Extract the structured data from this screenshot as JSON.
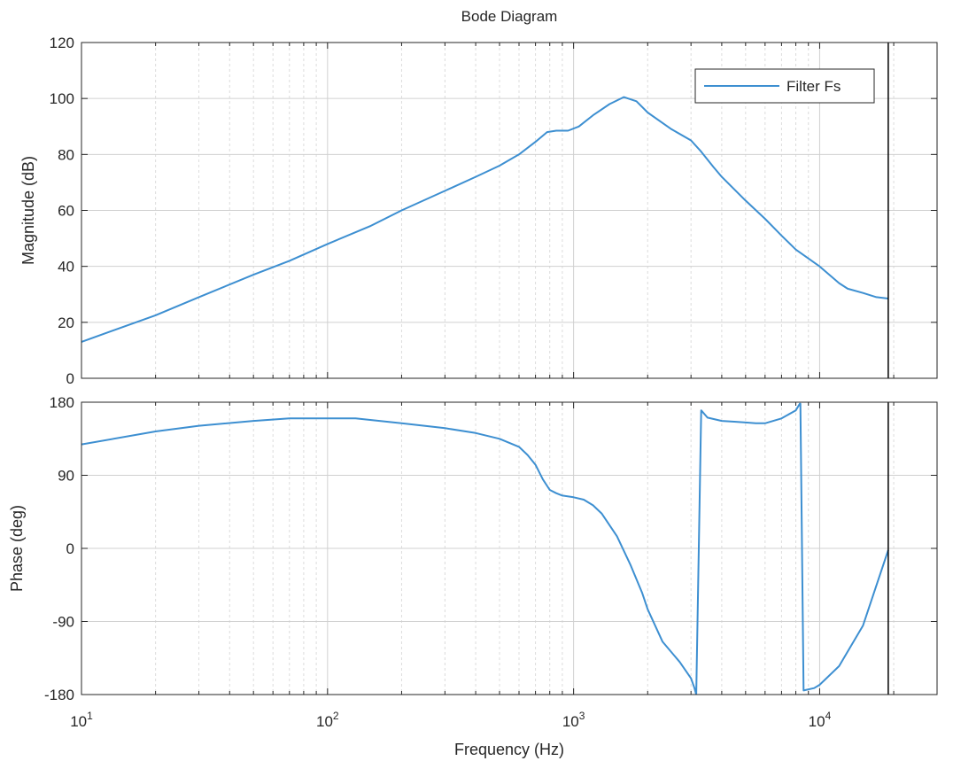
{
  "chart_data": {
    "type": "line",
    "title": "Bode Diagram",
    "xlabel": "Frequency (Hz)",
    "xscale": "log",
    "xlim": [
      10,
      30000
    ],
    "x_ticks": [
      {
        "base": "10",
        "exp": "1"
      },
      {
        "base": "10",
        "exp": "2"
      },
      {
        "base": "10",
        "exp": "3"
      },
      {
        "base": "10",
        "exp": "4"
      }
    ],
    "grid": true,
    "legend": {
      "placement": "top-right",
      "entries": [
        "Filter Fs"
      ]
    },
    "color": "#3d8fd1",
    "marker_line": {
      "x": 19000,
      "color": "#000000"
    },
    "panels": [
      {
        "ylabel": "Magnitude (dB)",
        "ylim": [
          0,
          120
        ],
        "yticks": [
          "0",
          "20",
          "40",
          "60",
          "80",
          "100",
          "120"
        ],
        "series": [
          {
            "name": "Filter Fs",
            "x": [
              10,
              20,
              30,
              50,
              70,
              100,
              150,
              200,
              300,
              400,
              500,
              600,
              700,
              780,
              850,
              950,
              1050,
              1200,
              1400,
              1600,
              1800,
              2000,
              2500,
              3000,
              3300,
              3700,
              4000,
              5000,
              6000,
              7000,
              8000,
              10000,
              12000,
              13000,
              15000,
              17000,
              19000
            ],
            "y": [
              13,
              22.5,
              29,
              37,
              42,
              48,
              54.5,
              60,
              67,
              72,
              76,
              80,
              84.5,
              88,
              88.5,
              88.5,
              90,
              94,
              98,
              100.5,
              99,
              95,
              89,
              85,
              81,
              75.5,
              72,
              63.5,
              57,
              51,
              46,
              40,
              34,
              32,
              30.5,
              29,
              28.5
            ]
          }
        ]
      },
      {
        "ylabel": "Phase (deg)",
        "ylim": [
          -180,
          180
        ],
        "yticks": [
          "-180",
          "-90",
          "0",
          "90",
          "180"
        ],
        "series": [
          {
            "name": "Filter Fs",
            "x": [
              10,
              20,
              30,
              50,
              70,
              100,
              130,
              200,
              300,
              400,
              500,
              600,
              650,
              700,
              750,
              800,
              850,
              900,
              1000,
              1100,
              1200,
              1300,
              1500,
              1700,
              1900,
              2000,
              2300,
              2700,
              3000,
              3100,
              3150,
              3300,
              3500,
              4000,
              4500,
              5000,
              5500,
              6000,
              7000,
              8000,
              8300,
              8350,
              8600,
              9500,
              10000,
              12000,
              15000,
              19000
            ],
            "y": [
              128,
              144,
              151,
              157,
              160,
              160,
              160,
              154,
              148,
              142,
              135,
              125,
              115,
              103,
              85,
              72,
              68,
              65,
              63,
              60,
              53,
              43,
              15,
              -20,
              -55,
              -75,
              -115,
              -140,
              -160,
              -172,
              -180,
              170,
              161,
              157,
              156,
              155,
              154,
              154,
              160,
              170,
              178,
              178,
              -175,
              -172,
              -168,
              -145,
              -95,
              -2
            ]
          }
        ]
      }
    ]
  }
}
